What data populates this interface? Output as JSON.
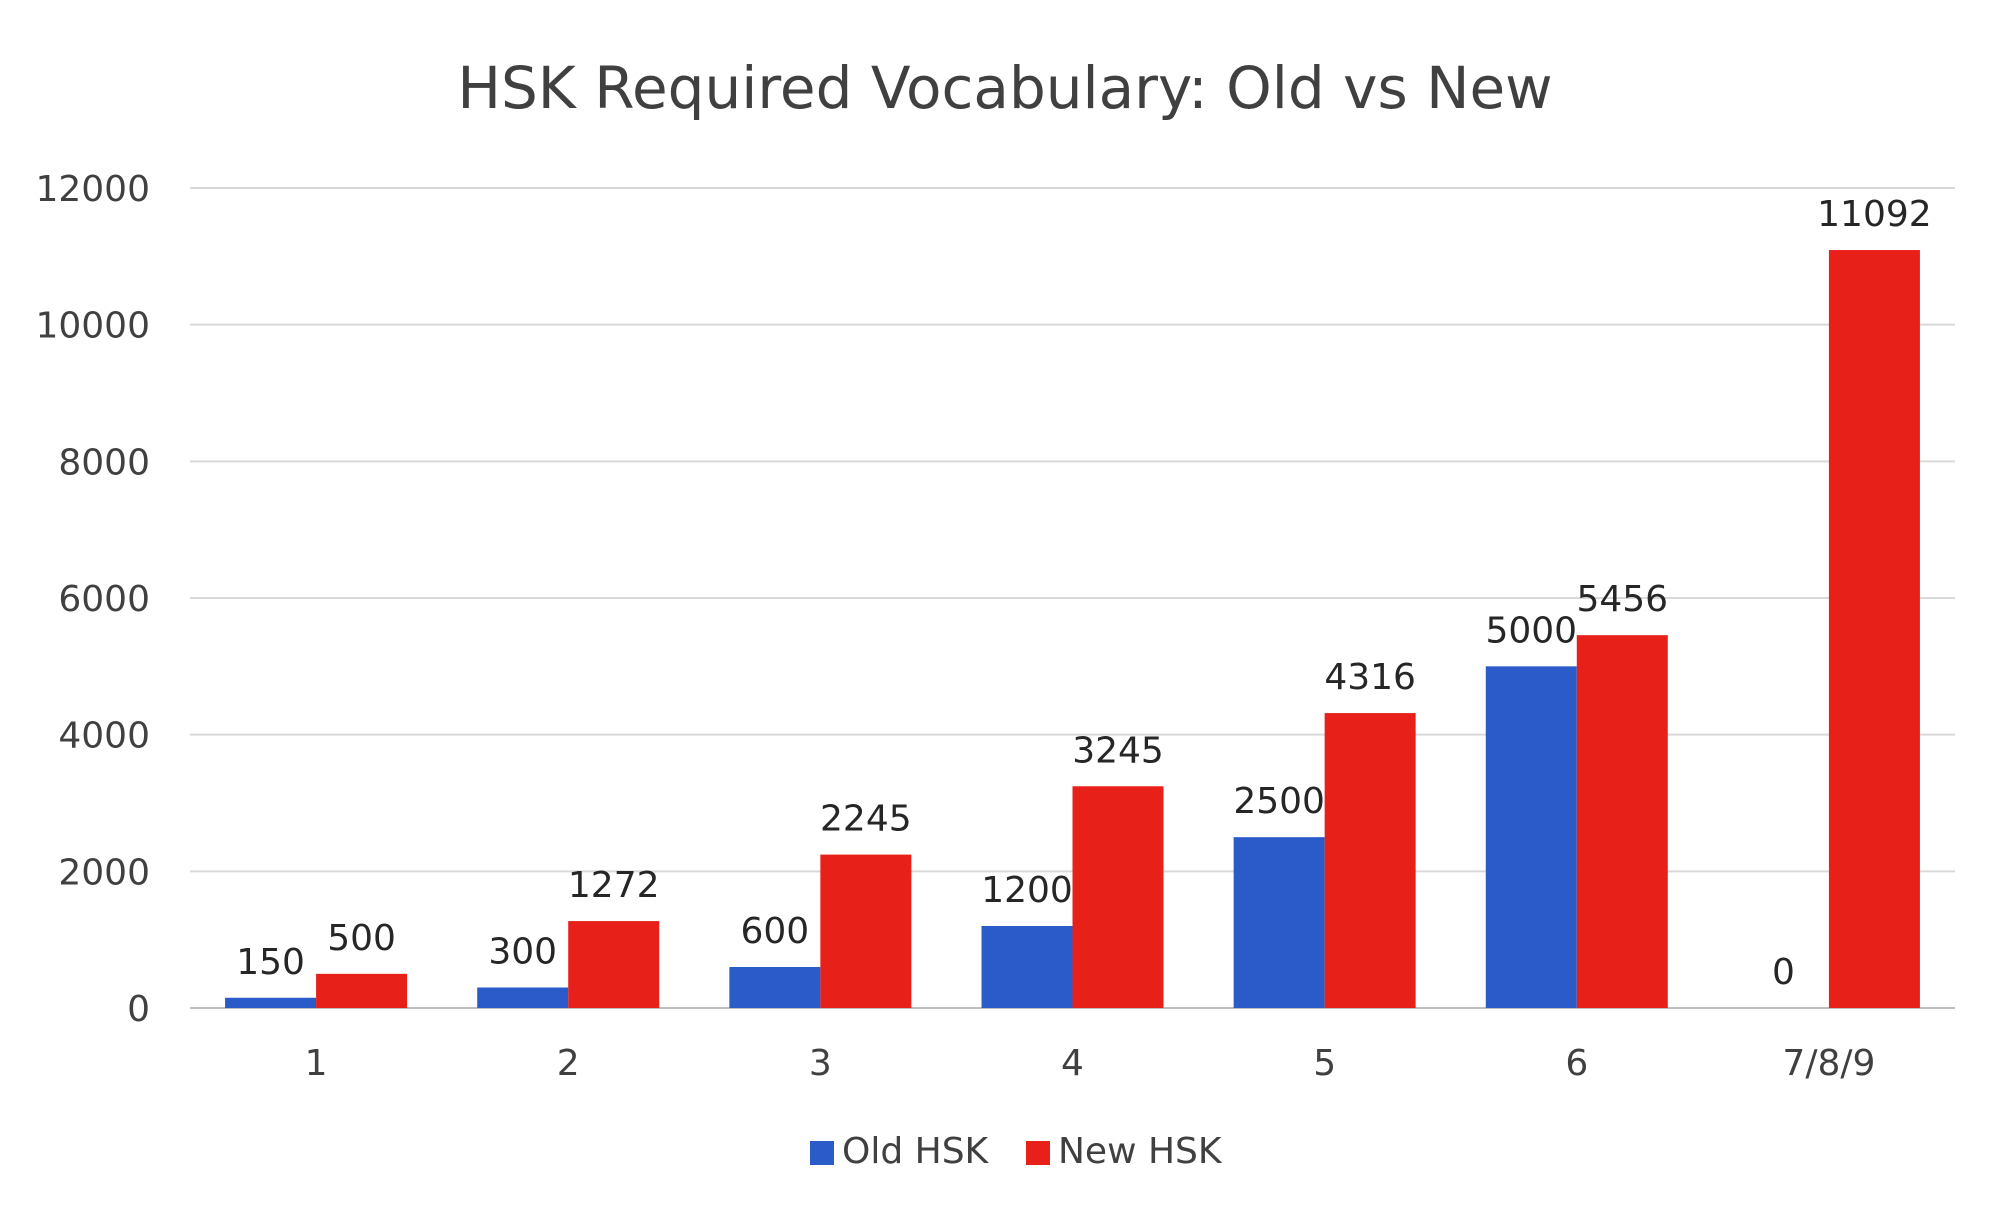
{
  "chart_data": {
    "type": "bar",
    "title": "HSK Required Vocabulary: Old vs New",
    "xlabel": "",
    "ylabel": "",
    "categories": [
      "1",
      "2",
      "3",
      "4",
      "5",
      "6",
      "7/8/9"
    ],
    "series": [
      {
        "name": "Old HSK",
        "color": "#2b5bc9",
        "values": [
          150,
          300,
          600,
          1200,
          2500,
          5000,
          0
        ]
      },
      {
        "name": "New HSK",
        "color": "#e8201a",
        "values": [
          500,
          1272,
          2245,
          3245,
          4316,
          5456,
          11092
        ]
      }
    ],
    "ylim": [
      0,
      12000
    ],
    "yticks": [
      0,
      2000,
      4000,
      6000,
      8000,
      10000,
      12000
    ],
    "grid": true,
    "legend_position": "bottom",
    "data_labels": true
  }
}
